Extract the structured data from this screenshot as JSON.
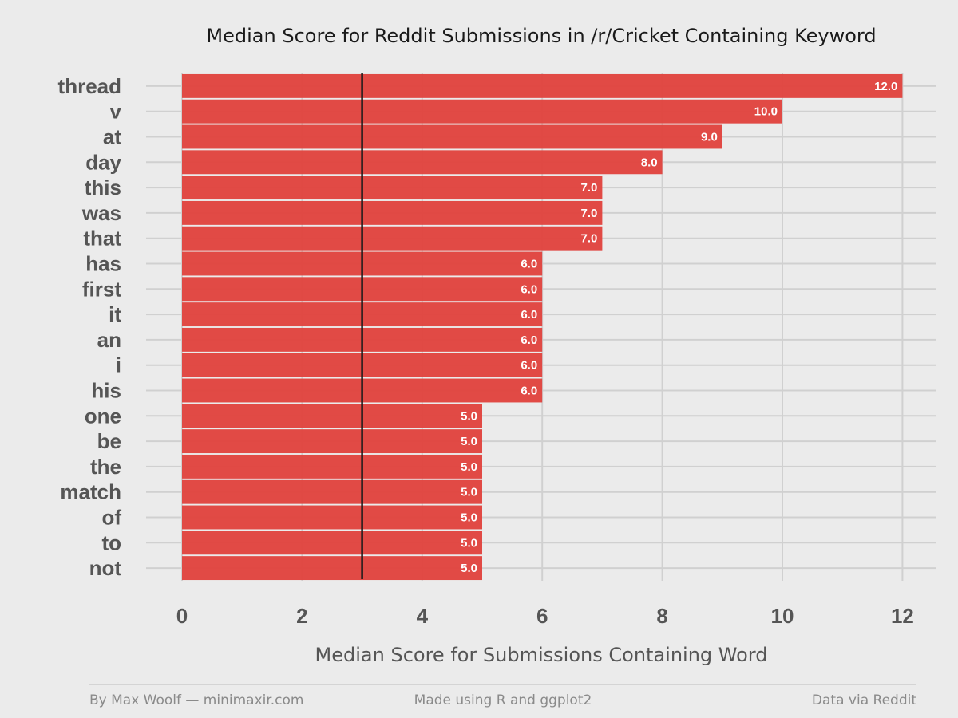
{
  "chart_data": {
    "type": "bar",
    "orientation": "horizontal",
    "title": "Median Score for Reddit Submissions in /r/Cricket Containing Keyword",
    "xlabel": "Median Score for Submissions Containing Word",
    "ylabel": "",
    "categories": [
      "thread",
      "v",
      "at",
      "day",
      "this",
      "was",
      "that",
      "has",
      "first",
      "it",
      "an",
      "i",
      "his",
      "one",
      "be",
      "the",
      "match",
      "of",
      "to",
      "not"
    ],
    "values": [
      12.0,
      10.0,
      9.0,
      8.0,
      7.0,
      7.0,
      7.0,
      6.0,
      6.0,
      6.0,
      6.0,
      6.0,
      6.0,
      5.0,
      5.0,
      5.0,
      5.0,
      5.0,
      5.0,
      5.0
    ],
    "value_labels": [
      "12.0",
      "10.0",
      "9.0",
      "8.0",
      "7.0",
      "7.0",
      "7.0",
      "6.0",
      "6.0",
      "6.0",
      "6.0",
      "6.0",
      "6.0",
      "5.0",
      "5.0",
      "5.0",
      "5.0",
      "5.0",
      "5.0",
      "5.0"
    ],
    "xticks": [
      0,
      2,
      4,
      6,
      8,
      10,
      12
    ],
    "xtick_labels": [
      "0",
      "2",
      "4",
      "6",
      "8",
      "10",
      "12"
    ],
    "xlim": [
      0,
      12.6
    ],
    "reference_line": 3,
    "grid": true,
    "legend": "none",
    "bar_color": "#E0413C",
    "reference_line_color": "#1a1a1a",
    "background_color": "#EBEBEB",
    "grid_color": "#D0D0D0"
  },
  "footer": {
    "left": "By Max Woolf — minimaxir.com",
    "center": "Made using R and ggplot2",
    "right": "Data via Reddit"
  }
}
